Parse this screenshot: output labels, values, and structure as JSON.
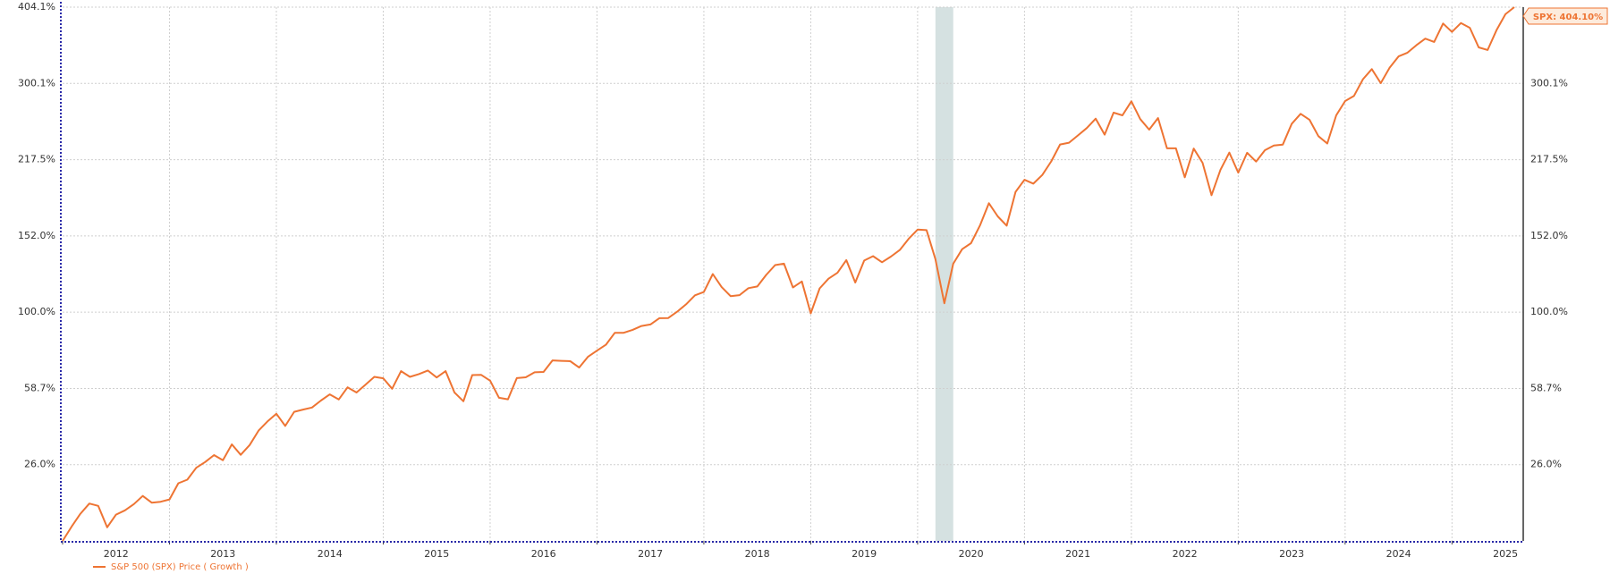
{
  "chart_data": {
    "type": "line",
    "yscale": "log",
    "grid": true,
    "x": [
      "2011-12",
      "2012-01",
      "2012-02",
      "2012-03",
      "2012-04",
      "2012-05",
      "2012-06",
      "2012-07",
      "2012-08",
      "2012-09",
      "2012-10",
      "2012-11",
      "2012-12",
      "2013-01",
      "2013-02",
      "2013-03",
      "2013-04",
      "2013-05",
      "2013-06",
      "2013-07",
      "2013-08",
      "2013-09",
      "2013-10",
      "2013-11",
      "2013-12",
      "2014-01",
      "2014-02",
      "2014-03",
      "2014-04",
      "2014-05",
      "2014-06",
      "2014-07",
      "2014-08",
      "2014-09",
      "2014-10",
      "2014-11",
      "2014-12",
      "2015-01",
      "2015-02",
      "2015-03",
      "2015-04",
      "2015-05",
      "2015-06",
      "2015-07",
      "2015-08",
      "2015-09",
      "2015-10",
      "2015-11",
      "2015-12",
      "2016-01",
      "2016-02",
      "2016-03",
      "2016-04",
      "2016-05",
      "2016-06",
      "2016-07",
      "2016-08",
      "2016-09",
      "2016-10",
      "2016-11",
      "2016-12",
      "2017-01",
      "2017-02",
      "2017-03",
      "2017-04",
      "2017-05",
      "2017-06",
      "2017-07",
      "2017-08",
      "2017-09",
      "2017-10",
      "2017-11",
      "2017-12",
      "2018-01",
      "2018-02",
      "2018-03",
      "2018-04",
      "2018-05",
      "2018-06",
      "2018-07",
      "2018-08",
      "2018-09",
      "2018-10",
      "2018-11",
      "2018-12",
      "2019-01",
      "2019-02",
      "2019-03",
      "2019-04",
      "2019-05",
      "2019-06",
      "2019-07",
      "2019-08",
      "2019-09",
      "2019-10",
      "2019-11",
      "2019-12",
      "2020-01",
      "2020-02",
      "2020-03",
      "2020-04",
      "2020-05",
      "2020-06",
      "2020-07",
      "2020-08",
      "2020-09",
      "2020-10",
      "2020-11",
      "2020-12",
      "2021-01",
      "2021-02",
      "2021-03",
      "2021-04",
      "2021-05",
      "2021-06",
      "2021-07",
      "2021-08",
      "2021-09",
      "2021-10",
      "2021-11",
      "2021-12",
      "2022-01",
      "2022-02",
      "2022-03",
      "2022-04",
      "2022-05",
      "2022-06",
      "2022-07",
      "2022-08",
      "2022-09",
      "2022-10",
      "2022-11",
      "2022-12",
      "2023-01",
      "2023-02",
      "2023-03",
      "2023-04",
      "2023-05",
      "2023-06",
      "2023-07",
      "2023-08",
      "2023-09",
      "2023-10",
      "2023-11",
      "2023-12",
      "2024-01",
      "2024-02",
      "2024-03",
      "2024-04",
      "2024-05",
      "2024-06",
      "2024-07",
      "2024-08",
      "2024-09",
      "2024-10",
      "2024-11",
      "2024-12",
      "2025-01",
      "2025-02",
      "2025-03",
      "2025-04",
      "2025-05",
      "2025-06",
      "2025-07"
    ],
    "series": [
      {
        "name": "S&P 500 (SPX) Price ( Growth )",
        "color": "#ee7433",
        "values": [
          0,
          4.4,
          8.6,
          12.0,
          11.2,
          4.2,
          8.3,
          9.7,
          11.8,
          14.6,
          12.3,
          12.6,
          13.4,
          19.1,
          20.4,
          24.8,
          27.0,
          29.7,
          27.7,
          34.0,
          29.8,
          33.7,
          39.7,
          43.6,
          47.0,
          41.7,
          47.9,
          48.9,
          49.8,
          53.0,
          55.9,
          53.5,
          59.3,
          56.8,
          60.5,
          64.4,
          63.7,
          58.6,
          67.3,
          64.4,
          65.8,
          67.6,
          64.1,
          67.3,
          56.8,
          52.7,
          65.3,
          65.4,
          62.5,
          54.3,
          53.6,
          63.8,
          64.2,
          66.7,
          66.9,
          72.8,
          72.6,
          72.4,
          69.1,
          74.8,
          78.0,
          81.2,
          87.9,
          87.9,
          89.6,
          91.8,
          92.7,
          96.4,
          96.5,
          100.3,
          104.8,
          110.5,
          112.6,
          124.5,
          115.8,
          110.0,
          110.6,
          115.1,
          116.2,
          123.9,
          130.7,
          131.7,
          115.6,
          119.5,
          99.3,
          115.0,
          121.4,
          125.4,
          134.2,
          118.8,
          133.9,
          137.0,
          132.7,
          136.7,
          141.5,
          149.8,
          156.9,
          156.5,
          134.9,
          105.5,
          131.6,
          142.1,
          146.5,
          160.1,
          178.3,
          167.4,
          160.0,
          188.0,
          198.7,
          195.3,
          203.1,
          215.9,
          232.5,
          234.3,
          241.7,
          249.5,
          259.6,
          242.5,
          266.2,
          263.2,
          279.0,
          259.1,
          247.8,
          260.2,
          228.6,
          228.6,
          201.0,
          228.4,
          214.5,
          185.1,
          207.9,
          224.4,
          205.3,
          224.2,
          215.7,
          226.8,
          231.5,
          232.4,
          253.9,
          264.9,
          258.4,
          241.0,
          233.5,
          263.2,
          279.3,
          285.3,
          305.2,
          317.8,
          300.4,
          319.6,
          334.2,
          339.1,
          349.1,
          358.2,
          353.7,
          379.7,
          367.7,
          380.3,
          373.5,
          346.2,
          342.8,
          370.1,
          393.4,
          404.1
        ]
      }
    ],
    "end_label": "SPX: 404.10%",
    "shade": [
      "2020-02",
      "2020-04"
    ],
    "shade_color": "#d5e1e1",
    "xlim": [
      "2011-12",
      "2025-08"
    ],
    "xticks": [
      2012,
      2013,
      2014,
      2015,
      2016,
      2017,
      2018,
      2019,
      2020,
      2021,
      2022,
      2023,
      2024,
      2025
    ],
    "ylim": [
      0,
      404.1
    ],
    "yticks": [
      {
        "value": 26.0,
        "label": "26.0%"
      },
      {
        "value": 58.7,
        "label": "58.7%"
      },
      {
        "value": 100.0,
        "label": "100.0%"
      },
      {
        "value": 152.0,
        "label": "152.0%"
      },
      {
        "value": 217.5,
        "label": "217.5%"
      },
      {
        "value": 300.1,
        "label": "300.1%"
      },
      {
        "value": 404.1,
        "label": "404.1%"
      }
    ]
  }
}
